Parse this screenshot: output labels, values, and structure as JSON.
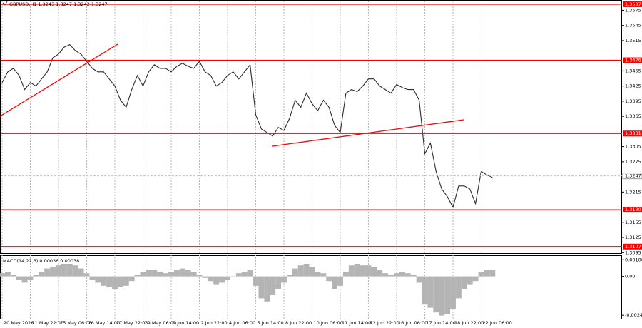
{
  "chart_data": [
    {
      "type": "line",
      "title": "GBPUSD,H1  1.3243 1.3247 1.3242 1.3247",
      "categories": [
        "20 May 2026",
        null,
        null,
        null,
        null,
        "21 May 22:00",
        null,
        null,
        null,
        null,
        "25 May 06:00",
        null,
        null,
        null,
        null,
        "26 May 14:00",
        null,
        null,
        null,
        null,
        "27 May 22:00",
        null,
        null,
        null,
        null,
        "29 May 06:00",
        null,
        null,
        null,
        null,
        "1 Jun 14:00",
        null,
        null,
        null,
        null,
        "2 Jun 22:00",
        null,
        null,
        null,
        null,
        "4 Jun 06:00",
        null,
        null,
        null,
        null,
        "5 Jun 14:00",
        null,
        null,
        null,
        null,
        "8 Jun 22:00",
        null,
        null,
        null,
        null,
        "10 Jun 06:00",
        null,
        null,
        null,
        null,
        "11 Jun 14:00",
        null,
        null,
        null,
        null,
        "12 Jun 22:00",
        null,
        null,
        null,
        null,
        "16 Jun 06:00",
        null,
        null,
        null,
        null,
        "17 Jun 14:00",
        null,
        null,
        null,
        null,
        "18 Jun 22:00",
        null,
        null,
        null,
        null,
        "22 Jun 06:00",
        null,
        null
      ],
      "series": [
        {
          "name": "GBPUSD,H1",
          "color": "#2b2b2b",
          "values": [
            1.3432,
            1.3453,
            1.346,
            1.3446,
            1.3418,
            1.3432,
            1.3425,
            1.3439,
            1.3453,
            1.3481,
            1.3488,
            1.3502,
            1.3507,
            1.3495,
            1.3488,
            1.3474,
            1.346,
            1.3453,
            1.3453,
            1.3439,
            1.3425,
            1.3397,
            1.3383,
            1.3418,
            1.3446,
            1.3425,
            1.3453,
            1.3467,
            1.346,
            1.346,
            1.3453,
            1.3464,
            1.347,
            1.3464,
            1.346,
            1.3474,
            1.3453,
            1.3446,
            1.3425,
            1.3432,
            1.3446,
            1.3453,
            1.3439,
            1.3453,
            1.3467,
            1.3368,
            1.334,
            1.3333,
            1.3326,
            1.3343,
            1.3337,
            1.3361,
            1.3397,
            1.3383,
            1.3411,
            1.339,
            1.3376,
            1.3397,
            1.3383,
            1.3347,
            1.3333,
            1.3411,
            1.3418,
            1.3414,
            1.3425,
            1.3439,
            1.3439,
            1.3425,
            1.3418,
            1.3411,
            1.3428,
            1.3422,
            1.3418,
            1.3418,
            1.3397,
            1.3291,
            1.3312,
            1.3256,
            1.3221,
            1.3206,
            1.3185,
            1.3227,
            1.3227,
            1.3221,
            1.3192,
            1.3256,
            1.3249,
            1.3244
          ]
        }
      ],
      "ylim": [
        1.3094,
        1.3594
      ],
      "yticks": [
        1.3095,
        1.3125,
        1.3155,
        1.3215,
        1.3275,
        1.3305,
        1.3365,
        1.3395,
        1.3425,
        1.3455,
        1.3515,
        1.3545,
        1.3575
      ],
      "levels": [
        1.3587,
        1.3476,
        1.3331,
        {
          "value": 1.318,
          "label": "1.3180"
        },
        1.3107
      ],
      "level_color": "#ff0000",
      "current_price": 1.3247
    },
    {
      "type": "bar",
      "title": "MACD(14,22,3) 0.00036 0.00038",
      "color": "#b4b4b4",
      "values": [
        0.0002,
        0.0003,
        0.0001,
        -0.0002,
        -0.0004,
        -0.0002,
        0.0001,
        0.0003,
        0.0005,
        0.0006,
        0.0007,
        0.0008,
        0.0008,
        0.0007,
        0.0005,
        0.0002,
        -0.0002,
        -0.0004,
        -0.0006,
        -0.0007,
        -0.0008,
        -0.0007,
        -0.0006,
        -0.0003,
        0.0001,
        0.0003,
        0.0004,
        0.0004,
        0.0003,
        0.0002,
        0.0003,
        0.0004,
        0.0005,
        0.0004,
        0.0003,
        0.0001,
        -0.0001,
        -0.0003,
        -0.0005,
        -0.0004,
        -0.0002,
        0,
        0.0002,
        0.0003,
        0.0004,
        -0.0006,
        -0.0014,
        -0.0016,
        -0.0012,
        -0.0008,
        -0.0004,
        0.0001,
        0.0005,
        0.0007,
        0.0008,
        0.0006,
        0.0003,
        0.0002,
        -0.0003,
        -0.0008,
        -0.0006,
        0.0003,
        0.0007,
        0.0008,
        0.0007,
        0.0007,
        0.0006,
        0.0004,
        0.0002,
        0.0001,
        0.0002,
        0.0003,
        0.0002,
        0.0001,
        -0.0004,
        -0.0018,
        -0.002,
        -0.0023,
        -0.0025,
        -0.0024,
        -0.0021,
        -0.0014,
        -0.0008,
        -0.0005,
        -0.0003,
        0.0003,
        0.0004,
        0.0004
      ],
      "ylim": [
        -0.0027,
        0.0013
      ],
      "yticks": [
        0.00106,
        {
          "value": 0,
          "label": "0.00"
        },
        -0.00248
      ]
    }
  ]
}
